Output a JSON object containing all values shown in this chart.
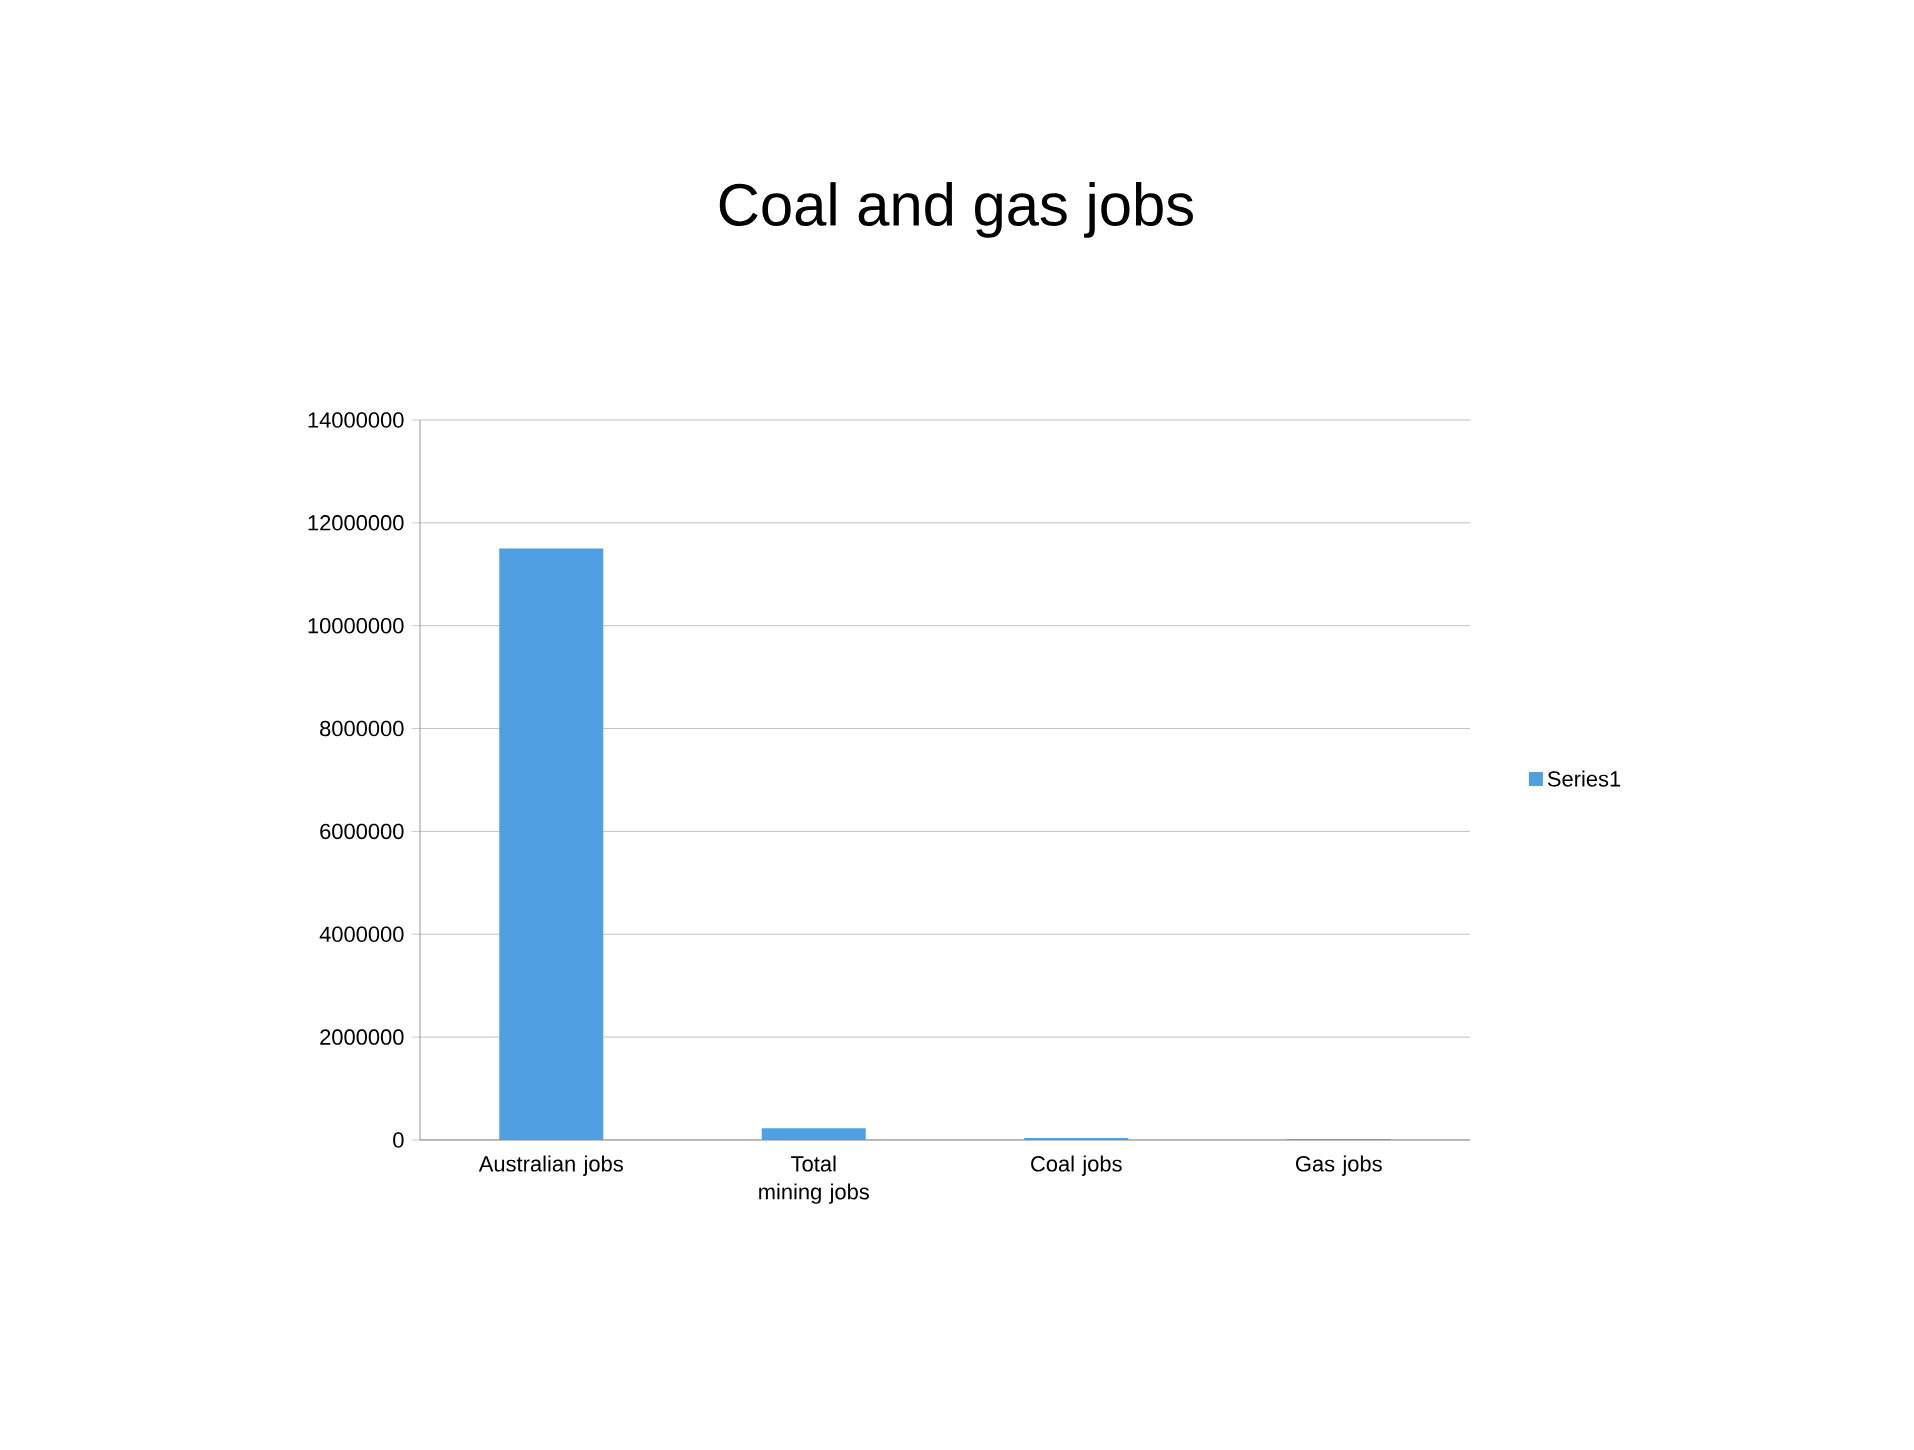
{
  "chart_data": {
    "type": "bar",
    "title": "Coal and gas jobs",
    "categories": [
      "Australian jobs",
      "Total mining jobs",
      "Coal jobs",
      "Gas jobs"
    ],
    "series": [
      {
        "name": "Series1",
        "color": "#4f9fe3",
        "values": [
          11500000,
          230000,
          40000,
          20000
        ]
      }
    ],
    "ylim": [
      0,
      14000000
    ],
    "yticks": [
      0,
      2000000,
      4000000,
      6000000,
      8000000,
      10000000,
      12000000,
      14000000
    ],
    "grid": "y",
    "legend": "right"
  }
}
